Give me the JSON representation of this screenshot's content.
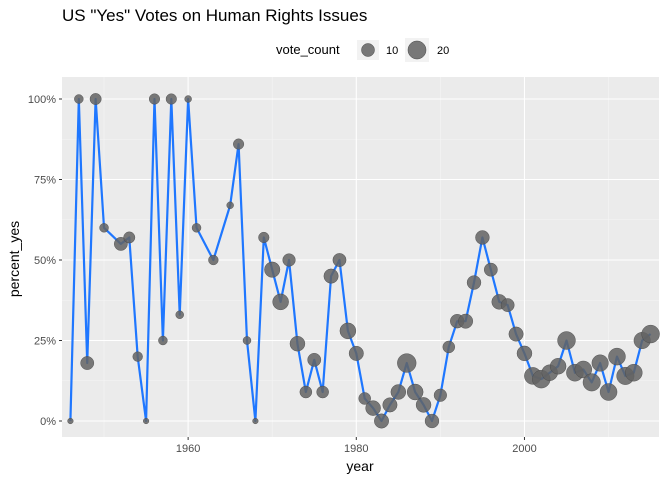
{
  "chart_data": {
    "type": "scatter",
    "title": "US \"Yes\" Votes on Human Rights Issues",
    "xlabel": "year",
    "ylabel": "percent_yes",
    "xlim": [
      1945,
      2016
    ],
    "ylim": [
      0,
      1
    ],
    "x_ticks": [
      1960,
      1980,
      2000
    ],
    "x_tick_labels": [
      "1960",
      "1980",
      "2000"
    ],
    "y_ticks": [
      0,
      0.25,
      0.5,
      0.75,
      1
    ],
    "y_tick_labels": [
      "0%",
      "25%",
      "50%",
      "75%",
      "100%"
    ],
    "grid": true,
    "legend": {
      "title": "vote_count",
      "position": "top",
      "entries": [
        {
          "label": "10",
          "vote_count": 10
        },
        {
          "label": "20",
          "vote_count": 20
        }
      ]
    },
    "colors": {
      "line": "#1f77ff",
      "point": "#636363",
      "panel": "#ebebeb",
      "grid": "#ffffff"
    },
    "series": [
      {
        "x": [
          1946,
          1947,
          1948,
          1949,
          1950,
          1952,
          1953,
          1954,
          1955,
          1956,
          1957,
          1958,
          1959,
          1960,
          1961,
          1963,
          1965,
          1966,
          1967,
          1968,
          1969,
          1970,
          1971,
          1972,
          1973,
          1974,
          1975,
          1976,
          1977,
          1978,
          1979,
          1980,
          1981,
          1982,
          1983,
          1984,
          1985,
          1986,
          1987,
          1988,
          1989,
          1990,
          1991,
          1992,
          1993,
          1994,
          1995,
          1996,
          1997,
          1998,
          1999,
          2000,
          2001,
          2002,
          2003,
          2004,
          2005,
          2006,
          2007,
          2008,
          2009,
          2010,
          2011,
          2012,
          2013,
          2014,
          2015
        ],
        "y": [
          0,
          1,
          0.18,
          1,
          0.6,
          0.55,
          0.57,
          0.2,
          0,
          1,
          0.25,
          1,
          0.33,
          1,
          0.6,
          0.5,
          0.67,
          0.86,
          0.25,
          0,
          0.57,
          0.47,
          0.37,
          0.5,
          0.24,
          0.09,
          0.19,
          0.09,
          0.45,
          0.5,
          0.28,
          0.21,
          0.07,
          0.04,
          0,
          0.05,
          0.09,
          0.18,
          0.09,
          0.05,
          0,
          0.08,
          0.23,
          0.31,
          0.31,
          0.43,
          0.57,
          0.47,
          0.37,
          0.36,
          0.27,
          0.21,
          0.14,
          0.13,
          0.15,
          0.17,
          0.25,
          0.15,
          0.16,
          0.12,
          0.18,
          0.09,
          0.2,
          0.14,
          0.15,
          0.25,
          0.27
        ],
        "vote_count": [
          2,
          5,
          11,
          8,
          5,
          11,
          8,
          6,
          2,
          7,
          5,
          7,
          4,
          3,
          5,
          6,
          3,
          7,
          4,
          2,
          7,
          15,
          16,
          10,
          14,
          9,
          11,
          9,
          13,
          11,
          16,
          13,
          9,
          14,
          13,
          13,
          14,
          22,
          16,
          14,
          12,
          10,
          9,
          12,
          13,
          12,
          12,
          11,
          14,
          11,
          13,
          14,
          18,
          20,
          16,
          16,
          20,
          18,
          18,
          19,
          17,
          18,
          18,
          19,
          18,
          17,
          20
        ]
      }
    ]
  }
}
